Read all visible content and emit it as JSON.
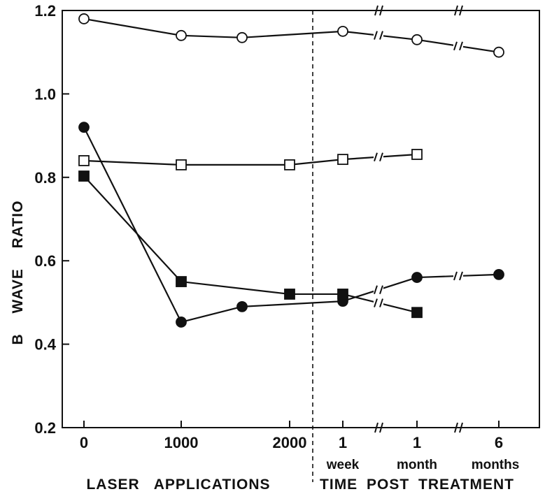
{
  "chart_data": {
    "type": "line",
    "ylabel": "B WAVE RATIO",
    "ylim": [
      0.2,
      1.2
    ],
    "yticks": [
      "1.2",
      "1.0",
      "0.8",
      "0.6",
      "0.4",
      "0.2"
    ],
    "x_groups": [
      "LASER APPLICATIONS",
      "TIME POST TREATMENT"
    ],
    "x_tick_labels": [
      {
        "top": "0",
        "bottom": ""
      },
      {
        "top": "1000",
        "bottom": ""
      },
      {
        "top": "2000",
        "bottom": ""
      },
      {
        "top": "1",
        "bottom": "week"
      },
      {
        "top": "1",
        "bottom": "month"
      },
      {
        "top": "6",
        "bottom": "months"
      }
    ],
    "grid": false,
    "series": [
      {
        "marker": "open-circle",
        "points": [
          {
            "x": "0",
            "y": 1.18
          },
          {
            "x": "1000",
            "y": 1.14
          },
          {
            "x": "1500",
            "y": 1.135
          },
          {
            "x": "1 week",
            "y": 1.15
          },
          {
            "x": "1 month",
            "y": 1.13
          },
          {
            "x": "6 months",
            "y": 1.1
          }
        ]
      },
      {
        "marker": "open-square",
        "points": [
          {
            "x": "0",
            "y": 0.84
          },
          {
            "x": "1000",
            "y": 0.83
          },
          {
            "x": "2000",
            "y": 0.83
          },
          {
            "x": "1 week",
            "y": 0.843
          },
          {
            "x": "1 month",
            "y": 0.855
          }
        ]
      },
      {
        "marker": "filled-circle",
        "points": [
          {
            "x": "0",
            "y": 0.92
          },
          {
            "x": "1000",
            "y": 0.453
          },
          {
            "x": "1500",
            "y": 0.49
          },
          {
            "x": "1 week",
            "y": 0.503
          },
          {
            "x": "1 month",
            "y": 0.56
          },
          {
            "x": "6 months",
            "y": 0.567
          }
        ]
      },
      {
        "marker": "filled-square",
        "points": [
          {
            "x": "0",
            "y": 0.803
          },
          {
            "x": "1000",
            "y": 0.55
          },
          {
            "x": "2000",
            "y": 0.52
          },
          {
            "x": "1 week",
            "y": 0.52
          },
          {
            "x": "1 month",
            "y": 0.476
          }
        ]
      }
    ]
  }
}
